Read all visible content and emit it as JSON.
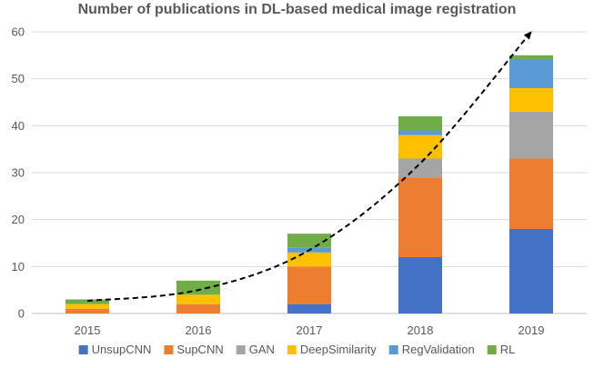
{
  "chart_data": {
    "type": "bar",
    "stacked": true,
    "title": "Number of publications in DL-based medical image registration",
    "xlabel": "",
    "ylabel": "",
    "ylim": [
      0,
      60
    ],
    "yticks": [
      0,
      10,
      20,
      30,
      40,
      50,
      60
    ],
    "grid": true,
    "legend_position": "bottom",
    "categories": [
      "2015",
      "2016",
      "2017",
      "2018",
      "2019"
    ],
    "series": [
      {
        "name": "UnsupCNN",
        "color": "#4472C4",
        "values": [
          0,
          0,
          2,
          12,
          18
        ]
      },
      {
        "name": "SupCNN",
        "color": "#ED7D31",
        "values": [
          1,
          2,
          8,
          17,
          15
        ]
      },
      {
        "name": "GAN",
        "color": "#A5A5A5",
        "values": [
          0,
          0,
          0,
          4,
          10
        ]
      },
      {
        "name": "DeepSimilarity",
        "color": "#FFC000",
        "values": [
          1,
          2,
          3,
          5,
          5
        ]
      },
      {
        "name": "RegValidation",
        "color": "#5B9BD5",
        "values": [
          0,
          0,
          1,
          1,
          6
        ]
      },
      {
        "name": "RL",
        "color": "#70AD47",
        "values": [
          1,
          3,
          3,
          3,
          1
        ]
      }
    ],
    "trendline": {
      "style": "dashed",
      "color": "#000000",
      "arrow": true,
      "points": [
        {
          "x": "2015",
          "y": 2.7
        },
        {
          "x": "2016",
          "y": 5
        },
        {
          "x": "2017",
          "y": 13.5
        },
        {
          "x": "2018",
          "y": 32
        },
        {
          "x": "2019",
          "y": 60
        }
      ]
    }
  }
}
